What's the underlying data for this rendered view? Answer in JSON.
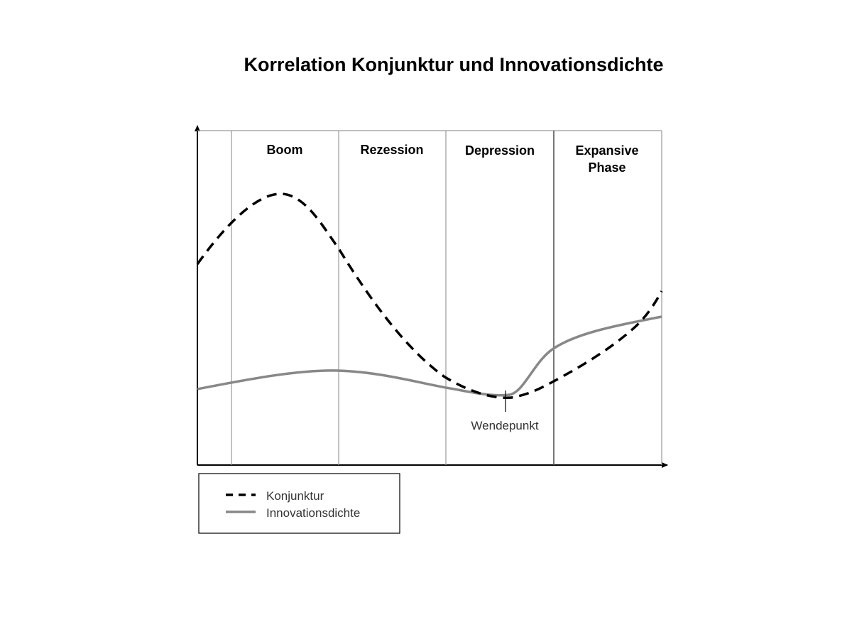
{
  "title": "Korrelation Konjunktur und Innovationsdichte",
  "phases": [
    {
      "label_lines": [
        "Boom"
      ]
    },
    {
      "label_lines": [
        "Rezession"
      ]
    },
    {
      "label_lines": [
        "Depression"
      ]
    },
    {
      "label_lines": [
        "Expansive",
        "Phase"
      ]
    }
  ],
  "annotation": "Wendepunkt",
  "legend": [
    {
      "label": "Konjunktur",
      "style": "dashed",
      "color": "#000000"
    },
    {
      "label": "Innovationsdichte",
      "style": "solid",
      "color": "#888888"
    }
  ],
  "colors": {
    "konjunktur": "#000000",
    "innovationsdichte": "#888888",
    "grid": "#9a9a9a"
  }
}
